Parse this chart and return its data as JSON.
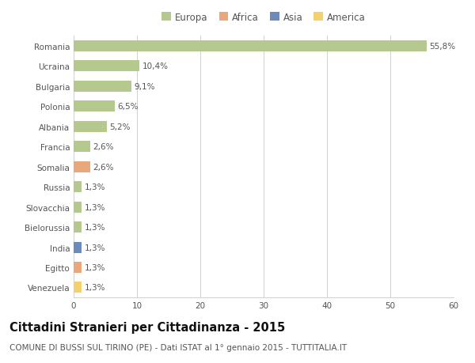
{
  "categories": [
    "Romania",
    "Ucraina",
    "Bulgaria",
    "Polonia",
    "Albania",
    "Francia",
    "Somalia",
    "Russia",
    "Slovacchia",
    "Bielorussia",
    "India",
    "Egitto",
    "Venezuela"
  ],
  "values": [
    55.8,
    10.4,
    9.1,
    6.5,
    5.2,
    2.6,
    2.6,
    1.3,
    1.3,
    1.3,
    1.3,
    1.3,
    1.3
  ],
  "labels": [
    "55,8%",
    "10,4%",
    "9,1%",
    "6,5%",
    "5,2%",
    "2,6%",
    "2,6%",
    "1,3%",
    "1,3%",
    "1,3%",
    "1,3%",
    "1,3%",
    "1,3%"
  ],
  "continents": [
    "Europa",
    "Europa",
    "Europa",
    "Europa",
    "Europa",
    "Europa",
    "Africa",
    "Europa",
    "Europa",
    "Europa",
    "Asia",
    "Africa",
    "America"
  ],
  "colors": {
    "Europa": "#b5c98e",
    "Africa": "#e8a87c",
    "Asia": "#6b8cba",
    "America": "#f5d06e"
  },
  "legend_order": [
    "Europa",
    "Africa",
    "Asia",
    "America"
  ],
  "xlim": [
    0,
    60
  ],
  "xticks": [
    0,
    10,
    20,
    30,
    40,
    50,
    60
  ],
  "title": "Cittadini Stranieri per Cittadinanza - 2015",
  "subtitle": "COMUNE DI BUSSI SUL TIRINO (PE) - Dati ISTAT al 1° gennaio 2015 - TUTTITALIA.IT",
  "background_color": "#ffffff",
  "grid_color": "#d0d0d0",
  "bar_height": 0.55,
  "title_fontsize": 10.5,
  "subtitle_fontsize": 7.5,
  "label_fontsize": 7.5,
  "tick_fontsize": 7.5,
  "legend_fontsize": 8.5
}
